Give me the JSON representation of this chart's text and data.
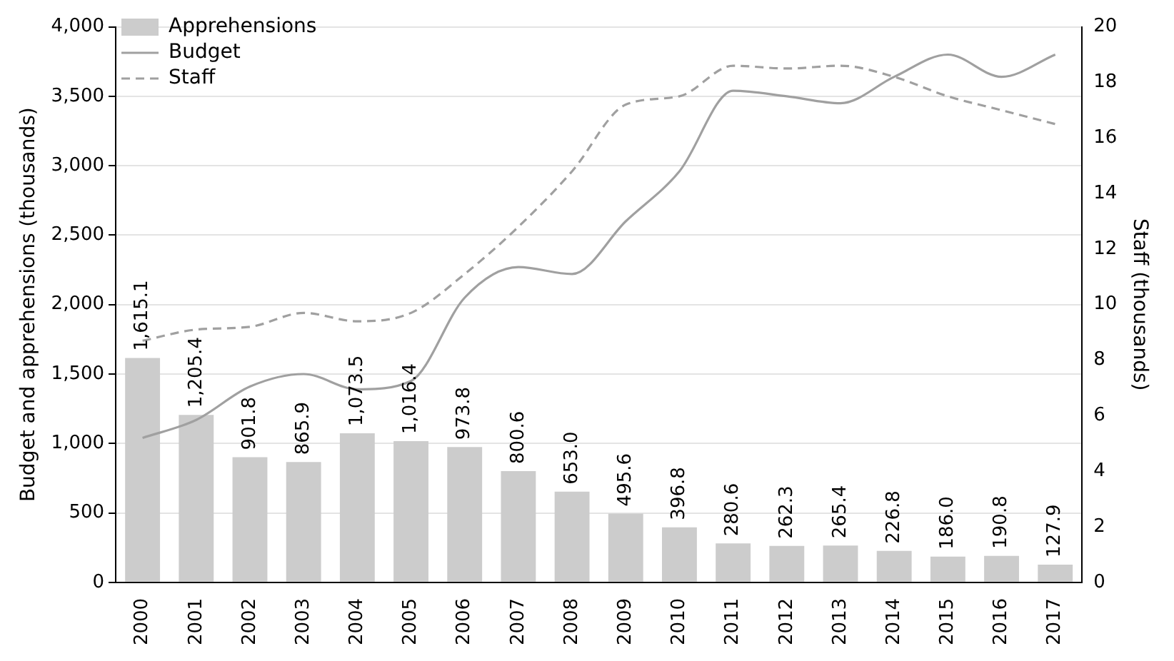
{
  "chart_data": {
    "type": "bar",
    "ylabel": "Budget and apprehensions (thousands)",
    "y2label": "Staff (thousands)",
    "categories": [
      "2000",
      "2001",
      "2002",
      "2003",
      "2004",
      "2005",
      "2006",
      "2007",
      "2008",
      "2009",
      "2010",
      "2011",
      "2012",
      "2013",
      "2014",
      "2015",
      "2016",
      "2017"
    ],
    "series": [
      {
        "name": "Apprehensions",
        "color": "#cccccc",
        "values": [
          1615.1,
          1205.4,
          901.8,
          865.9,
          1073.5,
          1016.4,
          973.8,
          800.6,
          653.0,
          495.6,
          396.8,
          280.6,
          262.3,
          265.4,
          226.8,
          186.0,
          190.8,
          127.9
        ],
        "value_labels": [
          "1,615.1",
          "1,205.4",
          "901.8",
          "865.9",
          "1,073.5",
          "1,016.4",
          "973.8",
          "800.6",
          "653.0",
          "495.6",
          "396.8",
          "280.6",
          "262.3",
          "265.4",
          "226.8",
          "186.0",
          "190.8",
          "127.9"
        ]
      },
      {
        "name": "Budget",
        "type": "line",
        "color": "#a0a0a0",
        "line_style": "solid",
        "values": [
          1040,
          1170,
          1410,
          1500,
          1390,
          1450,
          2050,
          2270,
          2220,
          2600,
          2960,
          3540,
          3500,
          3450,
          3640,
          3800,
          3640,
          3800
        ]
      },
      {
        "name": "Staff",
        "type": "line",
        "axis": "y2",
        "color": "#a0a0a0",
        "line_style": "dashed",
        "values": [
          8.7,
          9.1,
          9.2,
          9.7,
          9.4,
          9.7,
          11.1,
          12.8,
          14.8,
          17.2,
          17.5,
          18.6,
          18.5,
          18.6,
          18.2,
          17.5,
          17.0,
          16.5
        ]
      }
    ],
    "ylim": [
      0,
      4000
    ],
    "yticks": [
      0,
      500,
      {
        "value": 1000,
        "label": "1,000"
      },
      {
        "value": 1500,
        "label": "1,500"
      },
      {
        "value": 2000,
        "label": "2,000"
      },
      {
        "value": 2500,
        "label": "2,500"
      },
      {
        "value": 3000,
        "label": "3,000"
      },
      {
        "value": 3500,
        "label": "3,500"
      },
      {
        "value": 4000,
        "label": "4,000"
      }
    ],
    "y2lim": [
      0,
      20
    ],
    "y2ticks": [
      0,
      2,
      4,
      6,
      8,
      10,
      12,
      14,
      16,
      18,
      20
    ],
    "grid": "y",
    "legend": "top left",
    "marker": "none"
  }
}
